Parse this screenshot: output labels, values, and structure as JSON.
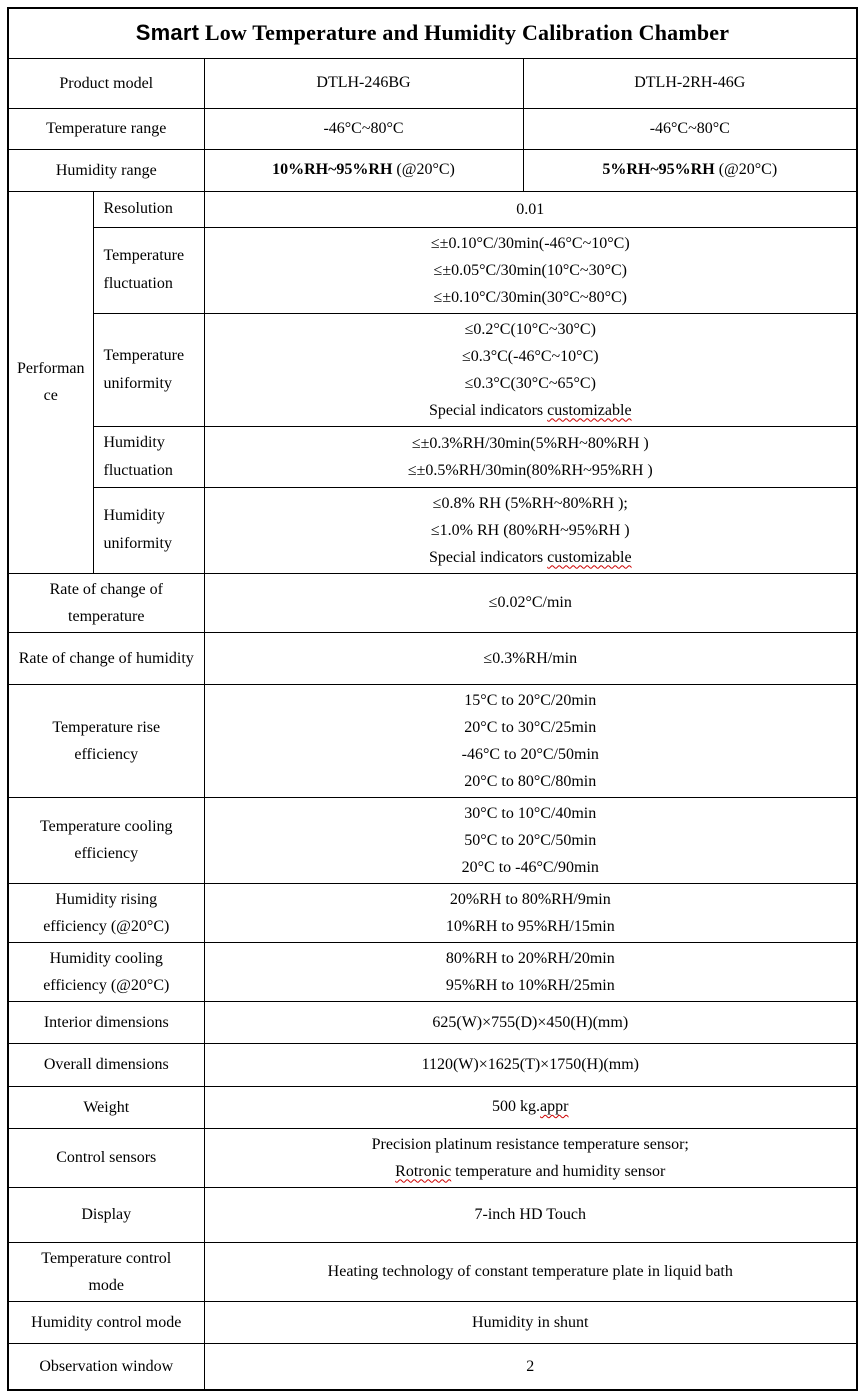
{
  "title": {
    "brand": "Smart",
    "rest": "Low Temperature and Humidity Calibration Chamber"
  },
  "product_model": {
    "label": "Product model",
    "model_a": "DTLH-246BG",
    "model_b": "DTLH-2RH-46G"
  },
  "temperature_range": {
    "label": "Temperature range",
    "value_a": "-46°C~80°C",
    "value_b": "-46°C~80°C"
  },
  "humidity_range": {
    "label": "Humidity range",
    "value_a_bold": "10%RH~95%RH",
    "value_a_note": "(@20°C)",
    "value_b_bold": "5%RH~95%RH",
    "value_b_note": "(@20°C)"
  },
  "performance": {
    "label": "Performance",
    "resolution": {
      "label": "Resolution",
      "lines": [
        "0.01"
      ]
    },
    "temperature_fluctuation": {
      "label": "Temperature fluctuation",
      "lines": [
        "≤±0.10°C/30min(-46°C~10°C)",
        "≤±0.05°C/30min(10°C~30°C)",
        "≤±0.10°C/30min(30°C~80°C)"
      ]
    },
    "temperature_uniformity": {
      "label": "Temperature uniformity",
      "lines": [
        "≤0.2°C(10°C~30°C)",
        "≤0.3°C(-46°C~10°C)",
        "≤0.3°C(30°C~65°C)"
      ],
      "special_prefix": "Special indicators ",
      "special_word": "customizable"
    },
    "humidity_fluctuation": {
      "label": "Humidity fluctuation",
      "lines": [
        "≤±0.3%RH/30min(5%RH~80%RH )",
        "≤±0.5%RH/30min(80%RH~95%RH )"
      ]
    },
    "humidity_uniformity": {
      "label": "Humidity uniformity",
      "lines": [
        "≤0.8% RH (5%RH~80%RH );",
        "≤1.0% RH (80%RH~95%RH )"
      ],
      "special_prefix": "Special indicators ",
      "special_word": "customizable"
    }
  },
  "rows": {
    "rate_temp": {
      "label": "Rate of change of temperature",
      "lines": [
        "≤0.02°C/min"
      ]
    },
    "rate_humidity": {
      "label": "Rate of change of humidity",
      "lines": [
        "≤0.3%RH/min"
      ]
    },
    "temp_rise": {
      "label": "Temperature rise efficiency",
      "lines": [
        "15°C  to 20°C/20min",
        "20°C  to 30°C/25min",
        "-46°C  to 20°C/50min",
        "20°C  to 80°C/80min"
      ]
    },
    "temp_cooling": {
      "label": "Temperature cooling efficiency",
      "lines": [
        "30°C  to 10°C/40min",
        "50°C  to 20°C/50min",
        "20°C  to -46°C/90min"
      ]
    },
    "humidity_rising": {
      "label": "Humidity rising efficiency (@20°C)",
      "lines": [
        "20%RH to 80%RH/9min",
        "10%RH to 95%RH/15min"
      ]
    },
    "humidity_cooling": {
      "label": "Humidity cooling efficiency (@20°C)",
      "lines": [
        "80%RH to 20%RH/20min",
        "95%RH to 10%RH/25min"
      ]
    },
    "interior": {
      "label": "Interior dimensions",
      "lines": [
        "625(W)×755(D)×450(H)(mm)"
      ]
    },
    "overall": {
      "label": "Overall dimensions",
      "lines": [
        "1120(W)×1625(T)×1750(H)(mm)"
      ]
    },
    "weight": {
      "label": "Weight",
      "value_main": "500 kg.",
      "value_wavy": "appr"
    },
    "sensors": {
      "label": "Control sensors",
      "line1": "Precision platinum resistance temperature sensor;",
      "line2_wavy": "Rotronic",
      "line2_rest": " temperature and humidity sensor"
    },
    "display": {
      "label": "Display",
      "lines": [
        "7-inch HD Touch"
      ]
    },
    "temp_mode": {
      "label": "Temperature control mode",
      "lines": [
        "Heating technology of constant temperature plate in liquid bath"
      ]
    },
    "humidity_mode": {
      "label": "Humidity control mode",
      "lines": [
        "Humidity in shunt"
      ]
    },
    "observation": {
      "label": "Observation window",
      "lines": [
        "2"
      ]
    }
  },
  "colors": {
    "text": "#000000",
    "border": "#000000",
    "spellcheck_underline": "#cc0000"
  }
}
